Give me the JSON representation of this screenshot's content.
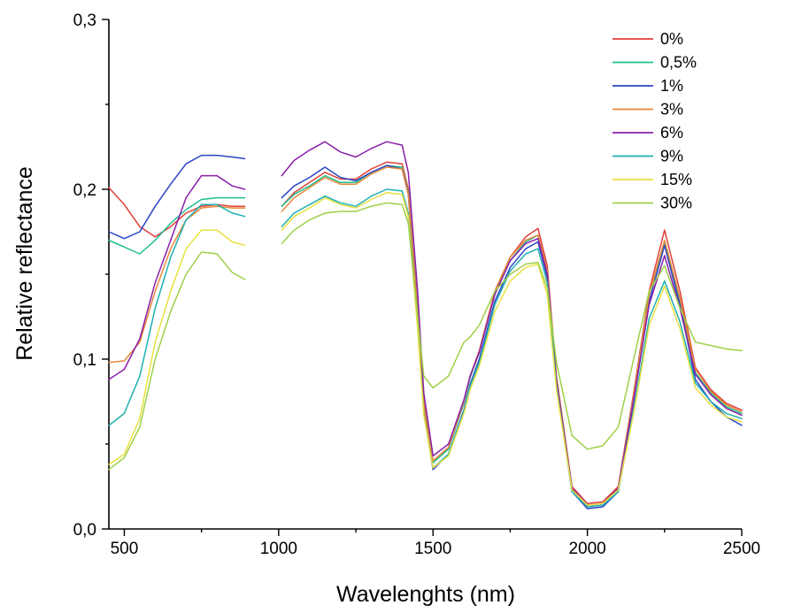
{
  "chart_data": {
    "type": "line",
    "xlabel": "Wavelenghts (nm)",
    "ylabel": "Relative reflectance",
    "xlim": [
      450,
      2500
    ],
    "ylim": [
      0.0,
      0.3
    ],
    "xticks": [
      500,
      1000,
      1500,
      2000,
      2500
    ],
    "xtick_labels": [
      "500",
      "1000",
      "1500",
      "2000",
      "2500"
    ],
    "yticks": [
      0.0,
      0.1,
      0.2,
      0.3
    ],
    "ytick_labels": [
      "0,0",
      "0,1",
      "0,2",
      "0,3"
    ],
    "gap": [
      890,
      1010
    ],
    "grid": false,
    "legend_position": "top-right",
    "x": [
      450,
      500,
      550,
      600,
      650,
      700,
      750,
      800,
      850,
      890,
      1010,
      1050,
      1100,
      1150,
      1200,
      1250,
      1300,
      1350,
      1400,
      1420,
      1450,
      1470,
      1500,
      1550,
      1600,
      1620,
      1650,
      1700,
      1750,
      1800,
      1840,
      1870,
      1900,
      1950,
      2000,
      2050,
      2100,
      2150,
      2200,
      2250,
      2300,
      2350,
      2400,
      2450,
      2500
    ],
    "series": [
      {
        "name": "0%",
        "color": "#e0403a",
        "values": [
          0.201,
          0.191,
          0.178,
          0.172,
          0.178,
          0.186,
          0.19,
          0.191,
          0.19,
          0.19,
          0.19,
          0.198,
          0.204,
          0.21,
          0.206,
          0.206,
          0.212,
          0.216,
          0.215,
          0.2,
          0.13,
          0.075,
          0.04,
          0.048,
          0.075,
          0.09,
          0.105,
          0.14,
          0.16,
          0.172,
          0.177,
          0.155,
          0.09,
          0.025,
          0.015,
          0.016,
          0.025,
          0.08,
          0.14,
          0.176,
          0.14,
          0.095,
          0.082,
          0.074,
          0.07
        ]
      },
      {
        "name": "0,5%",
        "color": "#1fbf8f",
        "values": [
          0.17,
          0.166,
          0.162,
          0.17,
          0.18,
          0.188,
          0.194,
          0.195,
          0.195,
          0.195,
          0.19,
          0.197,
          0.202,
          0.208,
          0.204,
          0.204,
          0.21,
          0.214,
          0.213,
          0.198,
          0.128,
          0.073,
          0.039,
          0.047,
          0.074,
          0.089,
          0.104,
          0.138,
          0.158,
          0.169,
          0.173,
          0.152,
          0.088,
          0.024,
          0.014,
          0.015,
          0.024,
          0.078,
          0.138,
          0.168,
          0.135,
          0.092,
          0.08,
          0.072,
          0.068
        ]
      },
      {
        "name": "1%",
        "color": "#2a44c4",
        "values": [
          0.175,
          0.171,
          0.175,
          0.19,
          0.203,
          0.215,
          0.22,
          0.22,
          0.219,
          0.218,
          0.195,
          0.202,
          0.207,
          0.213,
          0.207,
          0.205,
          0.21,
          0.214,
          0.212,
          0.197,
          0.125,
          0.07,
          0.035,
          0.044,
          0.07,
          0.085,
          0.1,
          0.134,
          0.154,
          0.165,
          0.169,
          0.148,
          0.085,
          0.022,
          0.012,
          0.013,
          0.022,
          0.075,
          0.134,
          0.167,
          0.132,
          0.088,
          0.075,
          0.066,
          0.061
        ]
      },
      {
        "name": "3%",
        "color": "#e8883a",
        "values": [
          0.098,
          0.099,
          0.11,
          0.14,
          0.165,
          0.182,
          0.189,
          0.19,
          0.189,
          0.189,
          0.187,
          0.195,
          0.201,
          0.207,
          0.203,
          0.203,
          0.209,
          0.213,
          0.212,
          0.197,
          0.127,
          0.073,
          0.04,
          0.048,
          0.075,
          0.09,
          0.104,
          0.14,
          0.16,
          0.17,
          0.173,
          0.152,
          0.088,
          0.024,
          0.014,
          0.015,
          0.024,
          0.078,
          0.138,
          0.17,
          0.136,
          0.094,
          0.081,
          0.073,
          0.069
        ]
      },
      {
        "name": "6%",
        "color": "#8a1fa8",
        "values": [
          0.088,
          0.094,
          0.112,
          0.145,
          0.17,
          0.195,
          0.208,
          0.208,
          0.202,
          0.2,
          0.208,
          0.217,
          0.223,
          0.228,
          0.222,
          0.219,
          0.224,
          0.228,
          0.226,
          0.21,
          0.14,
          0.08,
          0.043,
          0.05,
          0.076,
          0.09,
          0.104,
          0.138,
          0.158,
          0.168,
          0.171,
          0.15,
          0.087,
          0.024,
          0.014,
          0.015,
          0.024,
          0.076,
          0.132,
          0.161,
          0.13,
          0.091,
          0.079,
          0.071,
          0.067
        ]
      },
      {
        "name": "9%",
        "color": "#1fb0b0",
        "values": [
          0.061,
          0.068,
          0.09,
          0.13,
          0.16,
          0.182,
          0.191,
          0.191,
          0.186,
          0.184,
          0.178,
          0.186,
          0.191,
          0.196,
          0.192,
          0.19,
          0.196,
          0.2,
          0.199,
          0.186,
          0.12,
          0.068,
          0.036,
          0.044,
          0.069,
          0.084,
          0.098,
          0.132,
          0.152,
          0.162,
          0.165,
          0.145,
          0.084,
          0.022,
          0.013,
          0.014,
          0.022,
          0.07,
          0.124,
          0.146,
          0.122,
          0.086,
          0.075,
          0.068,
          0.065
        ]
      },
      {
        "name": "15%",
        "color": "#e8e040",
        "values": [
          0.038,
          0.044,
          0.065,
          0.11,
          0.14,
          0.165,
          0.176,
          0.176,
          0.169,
          0.167,
          0.176,
          0.184,
          0.189,
          0.195,
          0.191,
          0.189,
          0.194,
          0.198,
          0.197,
          0.184,
          0.118,
          0.067,
          0.036,
          0.043,
          0.068,
          0.082,
          0.096,
          0.128,
          0.146,
          0.154,
          0.156,
          0.138,
          0.082,
          0.023,
          0.014,
          0.015,
          0.023,
          0.068,
          0.12,
          0.143,
          0.118,
          0.083,
          0.073,
          0.066,
          0.063
        ]
      },
      {
        "name": "30%",
        "color": "#9ed048",
        "values": [
          0.035,
          0.042,
          0.06,
          0.1,
          0.128,
          0.15,
          0.163,
          0.162,
          0.151,
          0.147,
          0.168,
          0.176,
          0.182,
          0.186,
          0.187,
          0.187,
          0.19,
          0.192,
          0.191,
          0.18,
          0.125,
          0.09,
          0.083,
          0.09,
          0.11,
          0.113,
          0.12,
          0.14,
          0.15,
          0.156,
          0.157,
          0.142,
          0.098,
          0.055,
          0.047,
          0.049,
          0.06,
          0.1,
          0.14,
          0.155,
          0.13,
          0.11,
          0.108,
          0.106,
          0.105
        ]
      }
    ]
  }
}
